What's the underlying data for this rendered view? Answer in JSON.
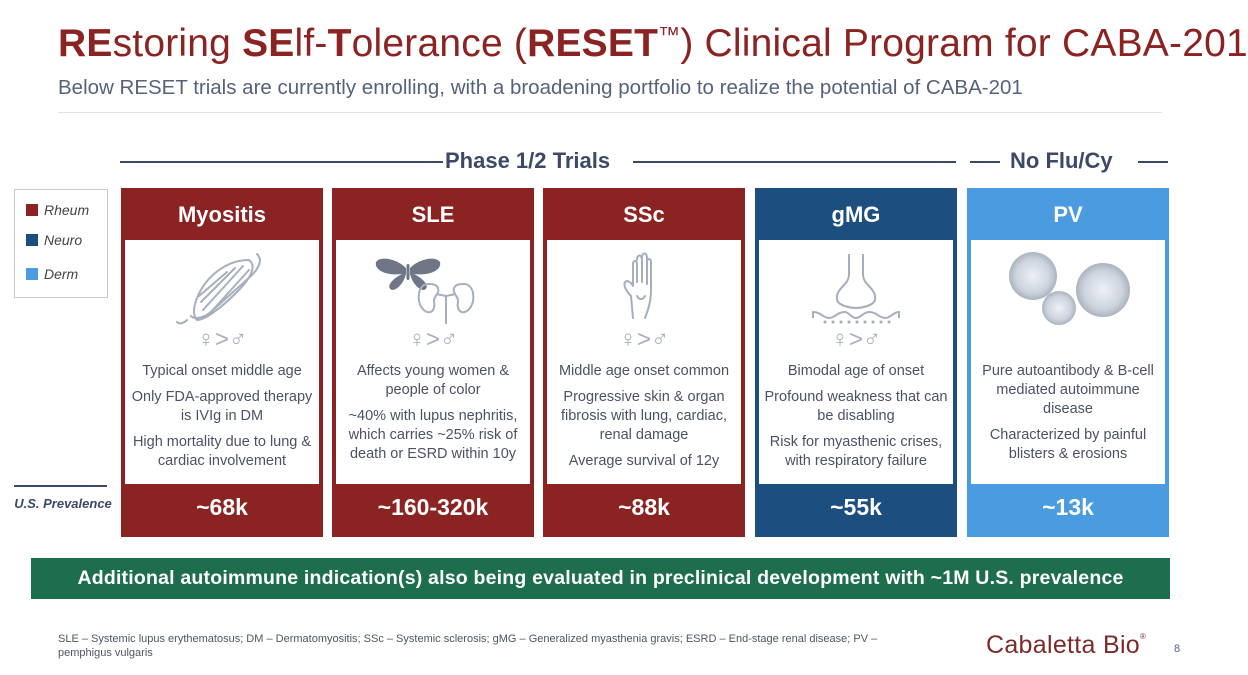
{
  "title": {
    "parts": [
      "RE",
      "storing ",
      "SE",
      "lf-",
      "T",
      "olerance (",
      "RESET",
      "™",
      ") Clinical Program for CABA-201"
    ]
  },
  "subtitle": "Below RESET trials are currently enrolling, with a broadening portfolio to realize the potential of CABA-201",
  "phase_label": "Phase 1/2 Trials",
  "noflu_label": "No Flu/Cy",
  "legend": [
    {
      "label": "Rheum",
      "color": "#8b2322"
    },
    {
      "label": "Neuro",
      "color": "#1c4e80"
    },
    {
      "label": "Derm",
      "color": "#4a9be0"
    }
  ],
  "prevalence_label": "U.S. Prevalence",
  "cards": [
    {
      "name": "Myositis",
      "sex_ratio": "♀>♂",
      "icon": "muscle-icon",
      "color": "#8b2322",
      "desc": [
        "Typical onset middle age",
        "Only FDA-approved therapy is IVIg in DM",
        "High mortality due to lung & cardiac involvement"
      ],
      "prevalence": "~68k"
    },
    {
      "name": "SLE",
      "sex_ratio": "♀>♂",
      "icon": "butterfly-kidney-icon",
      "color": "#8b2322",
      "desc": [
        "Affects young women & people of color",
        "~40% with lupus nephritis, which carries ~25% risk of death or ESRD within 10y"
      ],
      "prevalence": "~160-320k"
    },
    {
      "name": "SSc",
      "sex_ratio": "♀>♂",
      "icon": "hand-icon",
      "color": "#8b2322",
      "desc": [
        "Middle age onset common",
        "Progressive skin & organ fibrosis with lung, cardiac, renal damage",
        "Average survival of 12y"
      ],
      "prevalence": "~88k"
    },
    {
      "name": "gMG",
      "sex_ratio": "♀>♂",
      "icon": "synapse-icon",
      "color": "#1c4e80",
      "desc": [
        "Bimodal age of onset",
        "Profound weakness that can be disabling",
        "Risk for myasthenic crises, with respiratory failure"
      ],
      "prevalence": "~55k"
    },
    {
      "name": "PV",
      "sex_ratio": "",
      "icon": "cells-icon",
      "color": "#4a9be0",
      "desc": [
        "Pure autoantibody & B-cell mediated autoimmune disease",
        "Characterized by painful blisters & erosions"
      ],
      "prevalence": "~13k"
    }
  ],
  "additional_banner": "Additional autoimmune indication(s) also being evaluated in preclinical development with ~1M U.S. prevalence",
  "footnote": "SLE – Systemic lupus erythematosus; DM – Dermatomyositis; SSc – Systemic sclerosis; gMG – Generalized myasthenia gravis; ESRD – End-stage renal disease; PV – pemphigus vulgaris",
  "logo": {
    "text": "Cabaletta Bio",
    "mark": "®"
  },
  "page_number": "8"
}
